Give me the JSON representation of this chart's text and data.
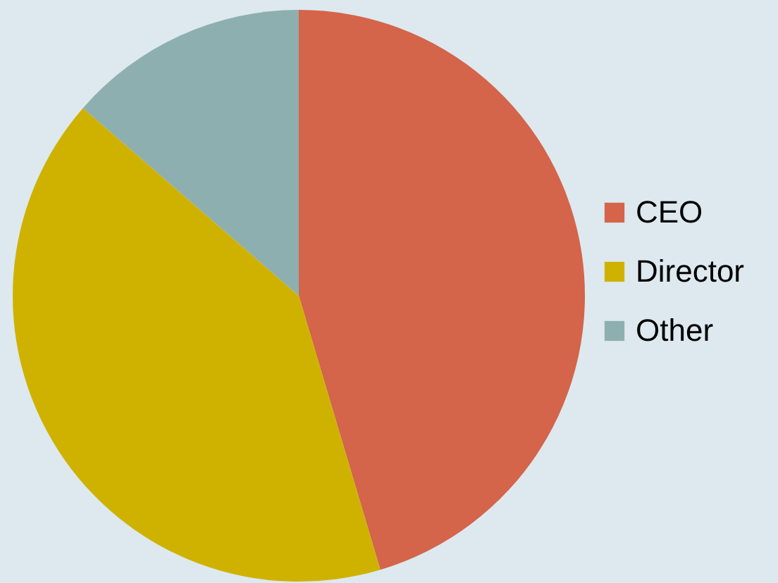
{
  "chart_data": {
    "type": "pie",
    "categories": [
      "CEO",
      "Director",
      "Other"
    ],
    "values": [
      45.4,
      41,
      13.6
    ],
    "colors": [
      "#d4644a",
      "#cfb200",
      "#8eafaf"
    ],
    "legend": "right"
  }
}
